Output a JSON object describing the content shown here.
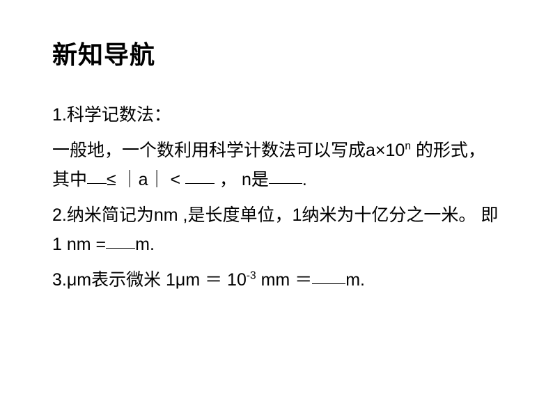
{
  "title": "新知导航",
  "items": {
    "p1a": "1.科学记数法：",
    "p1b_1": "一般地，一个数利用科学计数法可以写成a×10",
    "p1b_sup": "n",
    "p1b_2": " 的形式，其中",
    "p1b_3": "≤ ｜a｜ < ",
    "p1b_4": "， n是",
    "p1b_5": ".",
    "p2_1": "2.纳米简记为nm ,是长度单位，1纳米为十亿分之一米。  即1 nm =",
    "p2_2": "m.",
    "p3_1": "3.μm表示微米   1μm ＝ 10",
    "p3_sup": "-3",
    "p3_2": " mm ＝",
    "p3_3": "m."
  },
  "style": {
    "background": "#ffffff",
    "text_color": "#000000",
    "title_fontsize": 36,
    "body_fontsize": 25,
    "font_family": "Microsoft YaHei / SimSun"
  }
}
